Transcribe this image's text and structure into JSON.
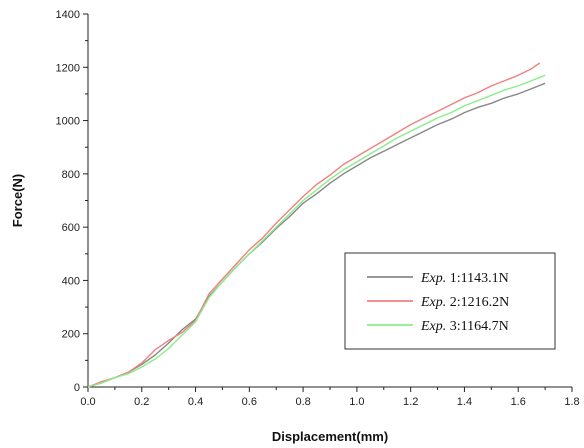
{
  "chart_data": {
    "type": "line",
    "xlabel": "Displacement(mm)",
    "ylabel": "Force(N)",
    "xlim": [
      0.0,
      1.8
    ],
    "ylim": [
      0,
      1400
    ],
    "x_ticks": [
      "0.0",
      "0.2",
      "0.4",
      "0.6",
      "0.8",
      "1.0",
      "1.2",
      "1.4",
      "1.6",
      "1.8"
    ],
    "y_ticks": [
      "0",
      "200",
      "400",
      "600",
      "800",
      "1000",
      "1200",
      "1400"
    ],
    "grid": false,
    "legend_position": "bottom-right",
    "series": [
      {
        "label_prefix": "Exp.",
        "label_suffix": " 1:1143.1N",
        "color": "#888888",
        "points": [
          [
            0.0,
            0
          ],
          [
            0.05,
            15
          ],
          [
            0.1,
            35
          ],
          [
            0.15,
            55
          ],
          [
            0.2,
            85
          ],
          [
            0.25,
            120
          ],
          [
            0.3,
            165
          ],
          [
            0.35,
            215
          ],
          [
            0.4,
            255
          ],
          [
            0.45,
            340
          ],
          [
            0.5,
            395
          ],
          [
            0.55,
            450
          ],
          [
            0.6,
            500
          ],
          [
            0.65,
            545
          ],
          [
            0.7,
            595
          ],
          [
            0.75,
            640
          ],
          [
            0.8,
            690
          ],
          [
            0.85,
            725
          ],
          [
            0.9,
            765
          ],
          [
            0.95,
            800
          ],
          [
            1.0,
            830
          ],
          [
            1.05,
            860
          ],
          [
            1.1,
            885
          ],
          [
            1.15,
            910
          ],
          [
            1.2,
            935
          ],
          [
            1.25,
            960
          ],
          [
            1.3,
            985
          ],
          [
            1.35,
            1005
          ],
          [
            1.4,
            1030
          ],
          [
            1.45,
            1050
          ],
          [
            1.5,
            1065
          ],
          [
            1.55,
            1085
          ],
          [
            1.6,
            1100
          ],
          [
            1.65,
            1120
          ],
          [
            1.7,
            1140
          ]
        ]
      },
      {
        "label_prefix": "Exp.",
        "label_suffix": " 2:1216.2N",
        "color": "#f08080",
        "points": [
          [
            0.0,
            0
          ],
          [
            0.05,
            20
          ],
          [
            0.1,
            35
          ],
          [
            0.15,
            55
          ],
          [
            0.2,
            90
          ],
          [
            0.25,
            140
          ],
          [
            0.3,
            175
          ],
          [
            0.35,
            205
          ],
          [
            0.4,
            250
          ],
          [
            0.45,
            350
          ],
          [
            0.5,
            405
          ],
          [
            0.55,
            460
          ],
          [
            0.6,
            515
          ],
          [
            0.65,
            560
          ],
          [
            0.7,
            615
          ],
          [
            0.75,
            665
          ],
          [
            0.8,
            715
          ],
          [
            0.85,
            760
          ],
          [
            0.9,
            795
          ],
          [
            0.95,
            835
          ],
          [
            1.0,
            865
          ],
          [
            1.05,
            895
          ],
          [
            1.1,
            925
          ],
          [
            1.15,
            955
          ],
          [
            1.2,
            985
          ],
          [
            1.25,
            1010
          ],
          [
            1.3,
            1035
          ],
          [
            1.35,
            1060
          ],
          [
            1.4,
            1085
          ],
          [
            1.45,
            1105
          ],
          [
            1.5,
            1130
          ],
          [
            1.55,
            1150
          ],
          [
            1.6,
            1170
          ],
          [
            1.65,
            1195
          ],
          [
            1.68,
            1216
          ]
        ]
      },
      {
        "label_prefix": "Exp.",
        "label_suffix": " 3:1164.7N",
        "color": "#88ee88",
        "points": [
          [
            0.0,
            0
          ],
          [
            0.05,
            15
          ],
          [
            0.1,
            35
          ],
          [
            0.15,
            50
          ],
          [
            0.2,
            75
          ],
          [
            0.25,
            105
          ],
          [
            0.3,
            145
          ],
          [
            0.35,
            195
          ],
          [
            0.4,
            245
          ],
          [
            0.45,
            335
          ],
          [
            0.5,
            395
          ],
          [
            0.55,
            450
          ],
          [
            0.6,
            500
          ],
          [
            0.65,
            550
          ],
          [
            0.7,
            600
          ],
          [
            0.75,
            650
          ],
          [
            0.8,
            700
          ],
          [
            0.85,
            740
          ],
          [
            0.9,
            780
          ],
          [
            0.95,
            815
          ],
          [
            1.0,
            845
          ],
          [
            1.05,
            875
          ],
          [
            1.1,
            905
          ],
          [
            1.15,
            935
          ],
          [
            1.2,
            960
          ],
          [
            1.25,
            985
          ],
          [
            1.3,
            1010
          ],
          [
            1.35,
            1030
          ],
          [
            1.4,
            1055
          ],
          [
            1.45,
            1075
          ],
          [
            1.5,
            1095
          ],
          [
            1.55,
            1115
          ],
          [
            1.6,
            1130
          ],
          [
            1.65,
            1150
          ],
          [
            1.7,
            1170
          ]
        ]
      }
    ]
  }
}
